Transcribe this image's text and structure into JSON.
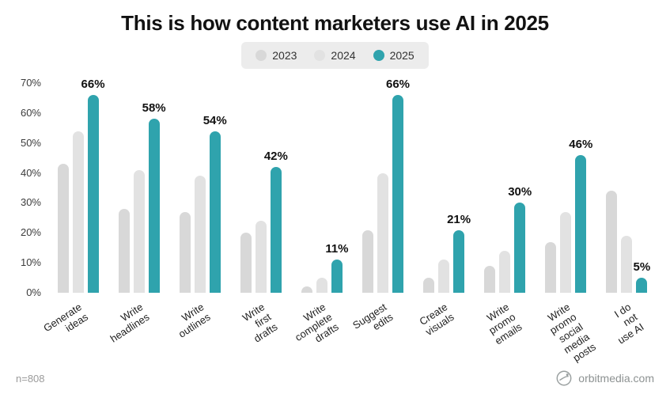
{
  "footer": {
    "sample_size": "n=808",
    "source": "orbitmedia.com"
  },
  "chart_data": {
    "type": "bar",
    "title": "This is how content marketers use AI in 2025",
    "categories": [
      "Generate ideas",
      "Write headlines",
      "Write outlines",
      "Write first drafts",
      "Write complete\ndrafts",
      "Suggest edits",
      "Create visuals",
      "Write promo emails",
      "Write promo social\nmedia posts",
      "I do not use AI"
    ],
    "series": [
      {
        "name": "2023",
        "color": "#d8d8d8",
        "show_value_labels": false,
        "values": [
          43,
          28,
          27,
          20,
          2,
          21,
          5,
          9,
          17,
          34
        ]
      },
      {
        "name": "2024",
        "color": "#e2e2e2",
        "show_value_labels": false,
        "values": [
          54,
          41,
          39,
          24,
          5,
          40,
          11,
          14,
          27,
          19
        ]
      },
      {
        "name": "2025",
        "color": "#2fa3ad",
        "show_value_labels": true,
        "values": [
          66,
          58,
          54,
          42,
          11,
          66,
          21,
          30,
          46,
          5
        ]
      }
    ],
    "ylim": [
      0,
      70
    ],
    "yticks": [
      70,
      60,
      50,
      40,
      30,
      20,
      10,
      0
    ],
    "grid": false,
    "legend_position": "top"
  }
}
